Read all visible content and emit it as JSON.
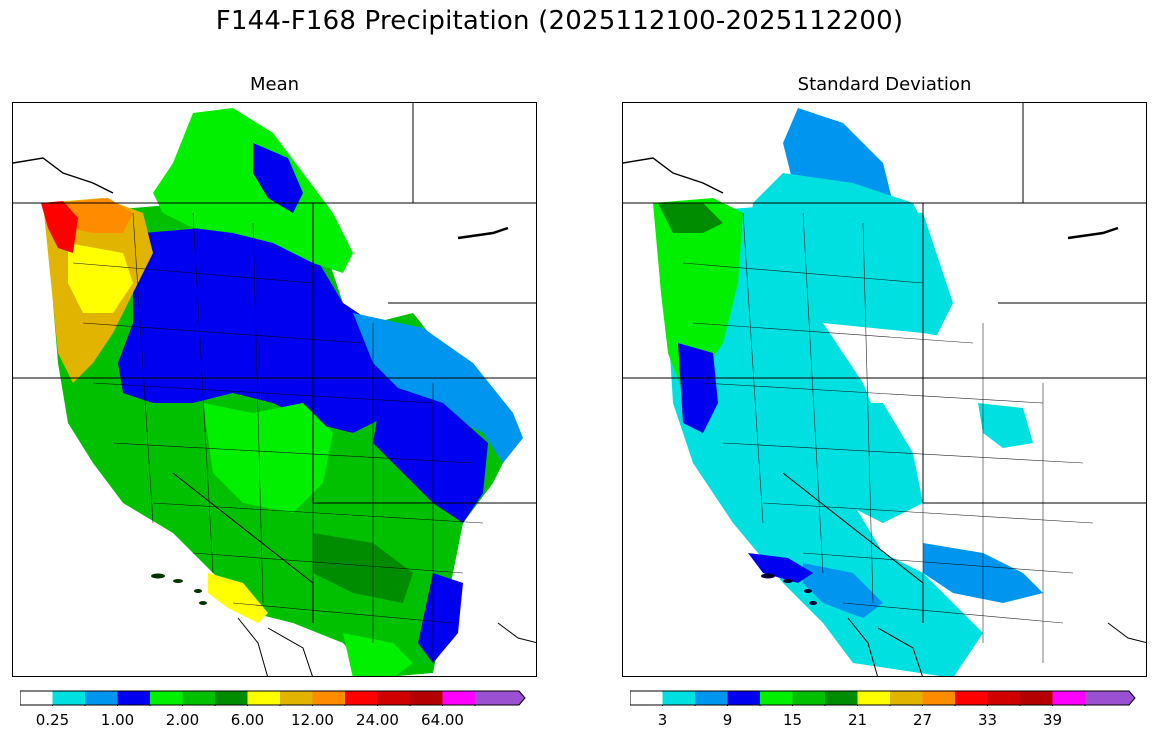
{
  "figure": {
    "title": "F144-F168 Precipitation (2025112100-2025112200)"
  },
  "panels": [
    {
      "id": "mean",
      "title": "Mean",
      "colorbar": {
        "colors": [
          "#ffffff",
          "#00e0e0",
          "#0096f0",
          "#0000f0",
          "#00f000",
          "#00c000",
          "#008c00",
          "#ffff00",
          "#e0b400",
          "#ff8c00",
          "#ff0000",
          "#d00000",
          "#b40000",
          "#ff00ff",
          "#9a50d0"
        ],
        "extend": "max",
        "tick_labels": [
          "0.25",
          "1.00",
          "2.00",
          "6.00",
          "12.00",
          "24.00",
          "64.00"
        ]
      }
    },
    {
      "id": "stddev",
      "title": "Standard Deviation",
      "colorbar": {
        "colors": [
          "#ffffff",
          "#00e0e0",
          "#0096f0",
          "#0000f0",
          "#00f000",
          "#00c000",
          "#008c00",
          "#ffff00",
          "#e0b400",
          "#ff8c00",
          "#ff0000",
          "#d00000",
          "#b40000",
          "#ff00ff",
          "#9a50d0"
        ],
        "extend": "max",
        "tick_labels": [
          "3",
          "9",
          "15",
          "21",
          "27",
          "33",
          "39"
        ]
      }
    }
  ]
}
